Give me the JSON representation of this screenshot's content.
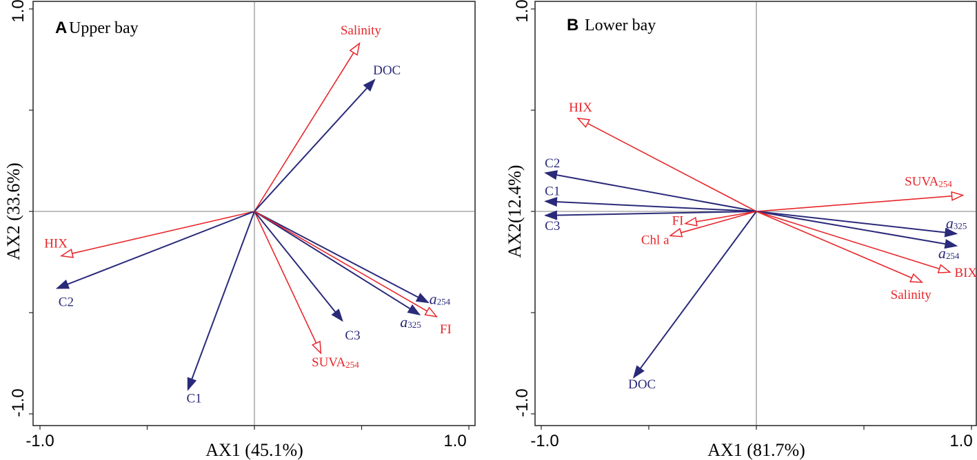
{
  "colors": {
    "red": "#e8262a",
    "navy": "#2a2a7a",
    "axis": "#222222"
  },
  "chart_data": [
    {
      "type": "biplot",
      "panel_letter": "A",
      "title": "Upper bay",
      "xlabel": "AX1 (45.1%)",
      "ylabel": "AX2 (33.6%)",
      "xlim": [
        -1.0,
        1.0
      ],
      "ylim": [
        -1.0,
        1.0
      ],
      "xticks": [
        "-1.0",
        "1.0"
      ],
      "yticks": [
        "1.0",
        "-1.0"
      ],
      "vectors": [
        {
          "label": "Salinity",
          "sub": "",
          "italic": false,
          "group": "environmental",
          "x": 0.49,
          "y": 0.83
        },
        {
          "label": "DOC",
          "sub": "",
          "italic": false,
          "group": "dom",
          "x": 0.56,
          "y": 0.65
        },
        {
          "label": "HIX",
          "sub": "",
          "italic": false,
          "group": "environmental",
          "x": -0.9,
          "y": -0.22
        },
        {
          "label": "C2",
          "sub": "",
          "italic": false,
          "group": "dom",
          "x": -0.92,
          "y": -0.38
        },
        {
          "label": "C1",
          "sub": "",
          "italic": false,
          "group": "dom",
          "x": -0.31,
          "y": -0.88
        },
        {
          "label": "SUVA",
          "sub": "254",
          "italic": false,
          "group": "environmental",
          "x": 0.31,
          "y": -0.7
        },
        {
          "label": "C3",
          "sub": "",
          "italic": false,
          "group": "dom",
          "x": 0.41,
          "y": -0.54
        },
        {
          "label": "a",
          "sub": "325",
          "italic": true,
          "group": "dom",
          "x": 0.77,
          "y": -0.51
        },
        {
          "label": "a",
          "sub": "254",
          "italic": true,
          "group": "dom",
          "x": 0.81,
          "y": -0.45
        },
        {
          "label": "FI",
          "sub": "",
          "italic": false,
          "group": "environmental",
          "x": 0.85,
          "y": -0.52
        }
      ]
    },
    {
      "type": "biplot",
      "panel_letter": "B",
      "title": "Lower bay",
      "xlabel": "AX1 (81.7%)",
      "ylabel": "AX2(12.4%)",
      "xlim": [
        -1.0,
        1.0
      ],
      "ylim": [
        -1.0,
        1.0
      ],
      "xticks": [
        "-1.0",
        "1.0"
      ],
      "yticks": [
        "1.0",
        "-1.0"
      ],
      "vectors": [
        {
          "label": "HIX",
          "sub": "",
          "italic": false,
          "group": "environmental",
          "x": -0.83,
          "y": 0.46
        },
        {
          "label": "C2",
          "sub": "",
          "italic": false,
          "group": "dom",
          "x": -0.98,
          "y": 0.19
        },
        {
          "label": "C1",
          "sub": "",
          "italic": false,
          "group": "dom",
          "x": -0.98,
          "y": 0.05
        },
        {
          "label": "C3",
          "sub": "",
          "italic": false,
          "group": "dom",
          "x": -0.98,
          "y": -0.02
        },
        {
          "label": "FI",
          "sub": "",
          "italic": false,
          "group": "environmental",
          "x": -0.33,
          "y": -0.06
        },
        {
          "label": "Chl a",
          "sub": "",
          "italic": false,
          "group": "environmental",
          "x": -0.4,
          "y": -0.12
        },
        {
          "label": "DOC",
          "sub": "",
          "italic": false,
          "group": "dom",
          "x": -0.57,
          "y": -0.82
        },
        {
          "label": "SUVA",
          "sub": "254",
          "italic": false,
          "group": "environmental",
          "x": 0.96,
          "y": 0.08
        },
        {
          "label": "a",
          "sub": "325",
          "italic": true,
          "group": "dom",
          "x": 0.93,
          "y": -0.11
        },
        {
          "label": "a",
          "sub": "254",
          "italic": true,
          "group": "dom",
          "x": 0.93,
          "y": -0.17
        },
        {
          "label": "BIX",
          "sub": "",
          "italic": false,
          "group": "environmental",
          "x": 0.9,
          "y": -0.3
        },
        {
          "label": "Salinity",
          "sub": "",
          "italic": false,
          "group": "environmental",
          "x": 0.77,
          "y": -0.35
        }
      ]
    }
  ]
}
